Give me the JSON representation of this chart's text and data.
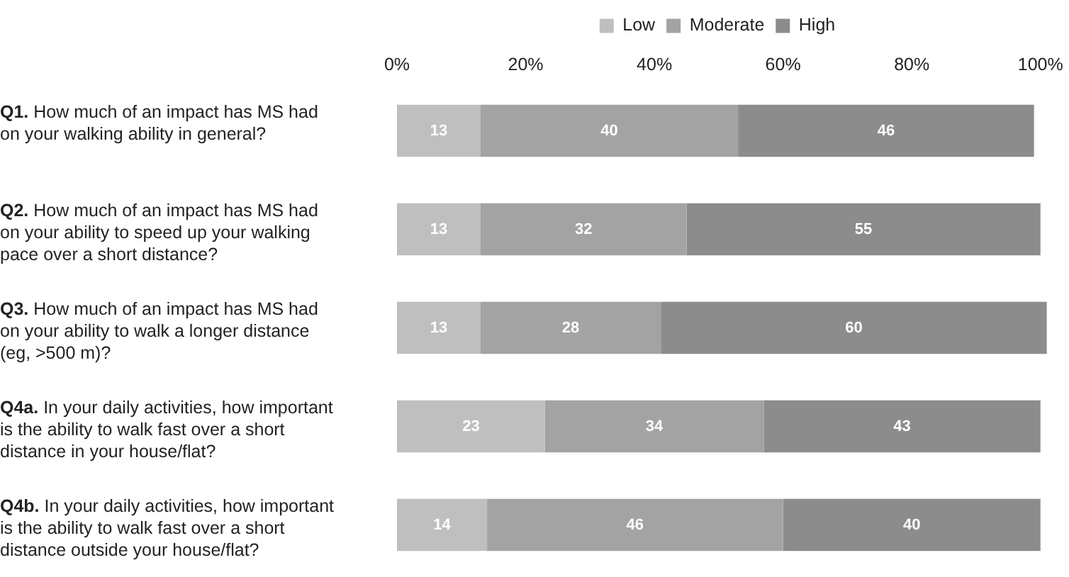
{
  "chart_data": {
    "type": "bar",
    "orientation": "horizontal",
    "stacked": true,
    "categories": [
      "Q1. How much of an impact has MS had on your walking ability in general?",
      "Q2. How much of an impact has MS had on your ability to speed up your walking pace over a short distance?",
      "Q3. How much of an impact has MS had on your ability to walk a longer distance (eg, >500 m)?",
      "Q4a. In your daily activities, how important is the ability to walk fast over a short distance in your house/flat?",
      "Q4b. In your daily activities, how important is the ability to walk fast over a short distance outside your house/flat?"
    ],
    "series": [
      {
        "name": "Low",
        "color": "#bfbfbf",
        "values": [
          13,
          13,
          13,
          23,
          14
        ]
      },
      {
        "name": "Moderate",
        "color": "#a3a3a3",
        "values": [
          40,
          32,
          28,
          34,
          46
        ]
      },
      {
        "name": "High",
        "color": "#8c8c8c",
        "values": [
          46,
          55,
          60,
          43,
          40
        ]
      }
    ],
    "xlim": [
      0,
      101
    ],
    "xticks": [
      {
        "value": 0,
        "label": "0%"
      },
      {
        "value": 20,
        "label": "20%"
      },
      {
        "value": 40,
        "label": "40%"
      },
      {
        "value": 60,
        "label": "60%"
      },
      {
        "value": 80,
        "label": "80%"
      },
      {
        "value": 100,
        "label": "100%"
      }
    ],
    "grid": false,
    "legend": "top",
    "data_labels": true
  }
}
